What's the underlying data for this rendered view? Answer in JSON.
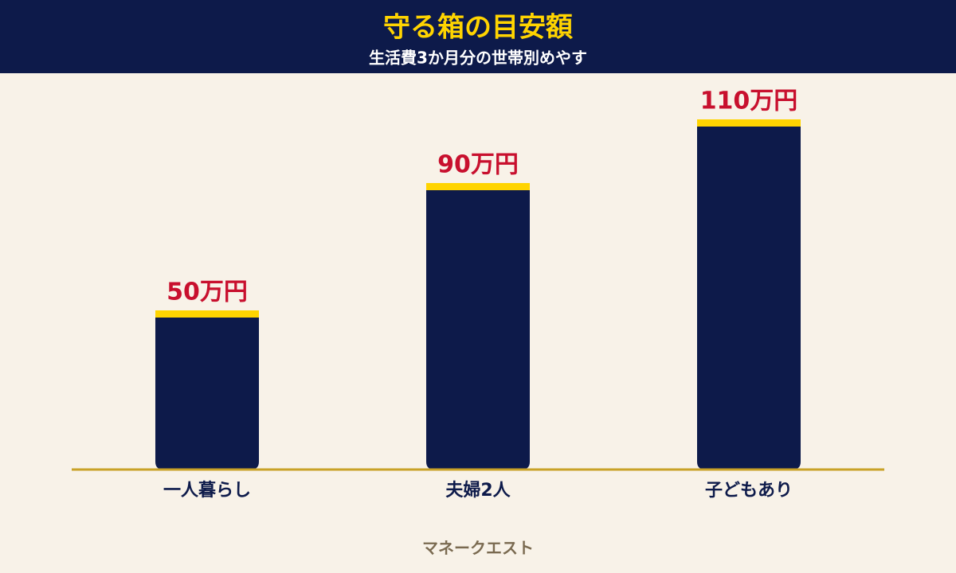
{
  "chart_data": {
    "type": "bar",
    "title": "守る箱の目安額",
    "subtitle": "生活費3か月分の世帯別めやす",
    "categories": [
      "一人暮らし",
      "夫婦2人",
      "子どもあり"
    ],
    "values": [
      50,
      90,
      110
    ],
    "value_labels": [
      "50万円",
      "90万円",
      "110万円"
    ],
    "color": "#0d1a4a",
    "cap_color": "#ffd400",
    "label_color": "#c8102e",
    "source": "マネークエスト"
  }
}
